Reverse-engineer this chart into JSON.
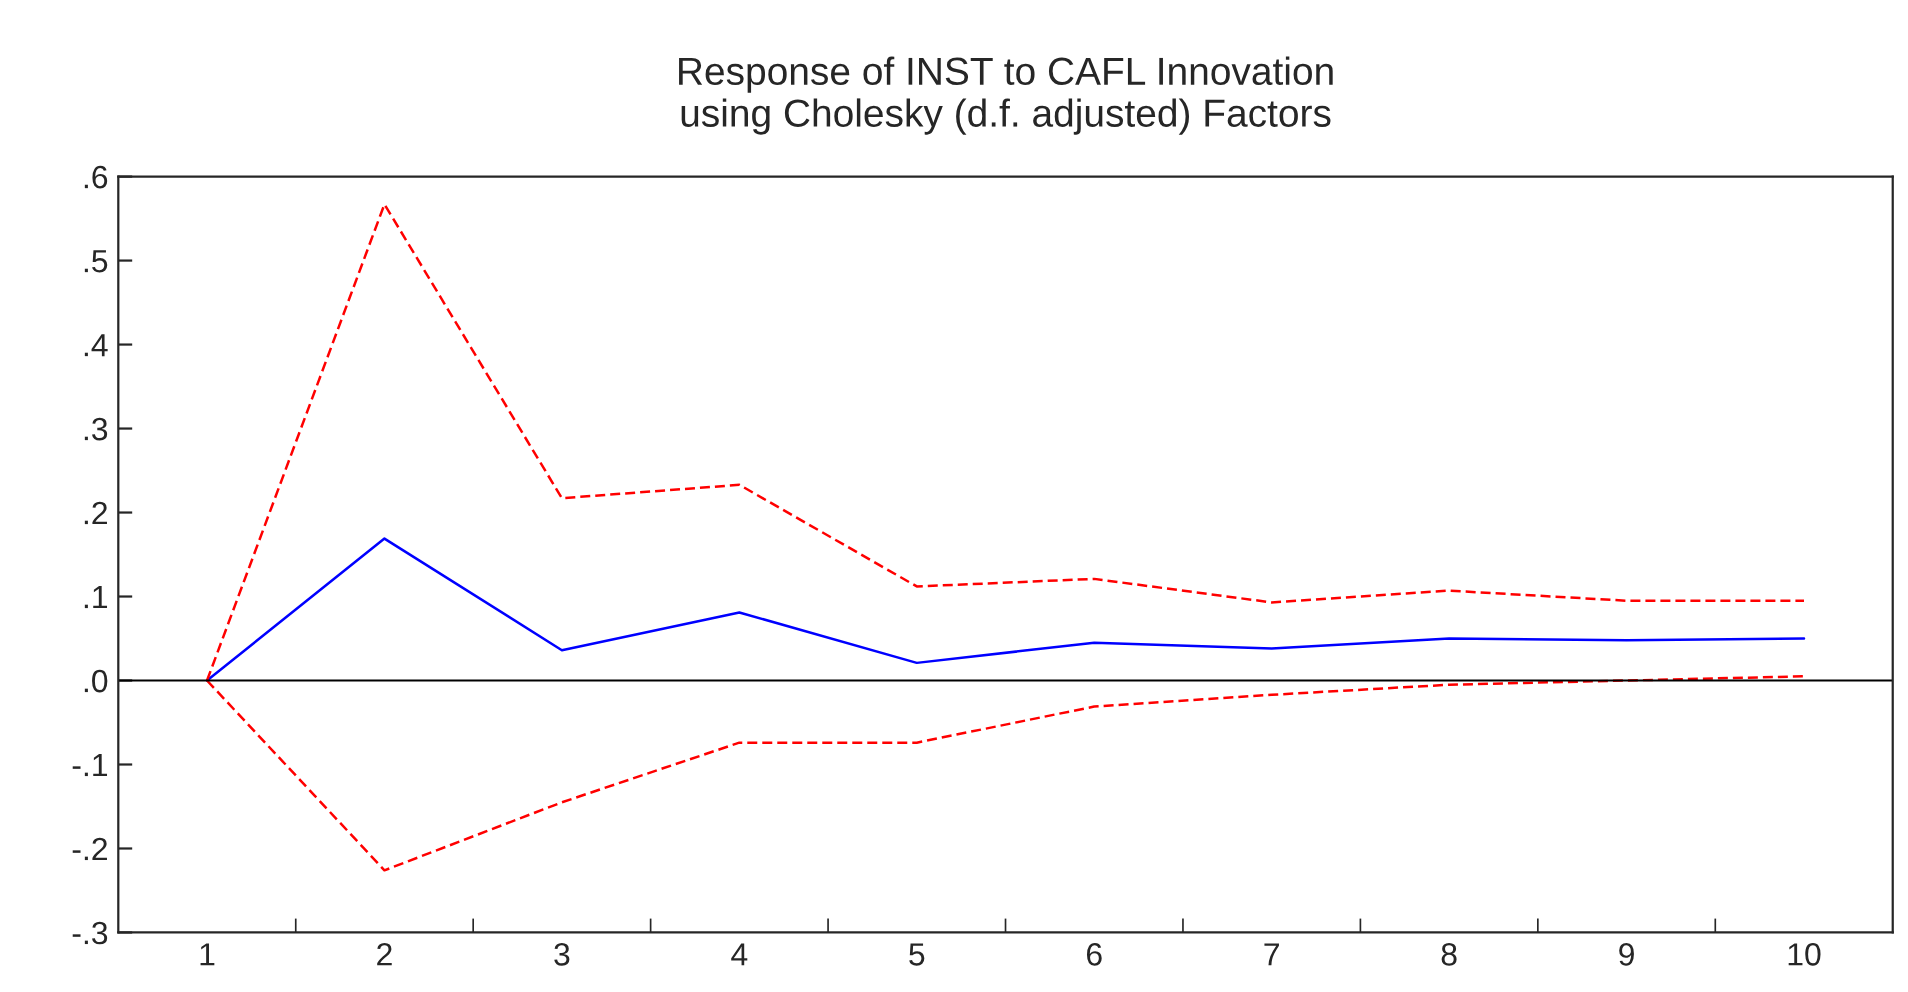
{
  "chart_data": {
    "type": "line",
    "title": "Response of INST to CAFL Innovation\nusing Cholesky (d.f. adjusted) Factors",
    "categories": [
      "1",
      "2",
      "3",
      "4",
      "5",
      "6",
      "7",
      "8",
      "9",
      "10"
    ],
    "series": [
      {
        "color": "#0000ff",
        "line_style": "solid",
        "values": [
          0.0,
          0.169,
          0.036,
          0.081,
          0.021,
          0.045,
          0.038,
          0.05,
          0.048,
          0.05
        ]
      },
      {
        "color": "#ff0000",
        "line_style": "dashed",
        "values": [
          0.0,
          0.567,
          0.217,
          0.233,
          0.112,
          0.121,
          0.093,
          0.107,
          0.095,
          0.095
        ]
      },
      {
        "color": "#ff0000",
        "line_style": "dashed",
        "values": [
          0.0,
          -0.226,
          -0.145,
          -0.074,
          -0.074,
          -0.031,
          -0.017,
          -0.005,
          0.0,
          0.005
        ]
      }
    ],
    "ylim": [
      -0.3,
      0.6
    ],
    "yticks": [
      {
        "value": -0.3,
        "label": "-.3"
      },
      {
        "value": -0.2,
        "label": "-.2"
      },
      {
        "value": -0.1,
        "label": "-.1"
      },
      {
        "value": 0.0,
        "label": ".0"
      },
      {
        "value": 0.1,
        "label": ".1"
      },
      {
        "value": 0.2,
        "label": ".2"
      },
      {
        "value": 0.3,
        "label": ".3"
      },
      {
        "value": 0.4,
        "label": ".4"
      },
      {
        "value": 0.5,
        "label": ".5"
      },
      {
        "value": 0.6,
        "label": ".6"
      }
    ],
    "ref_lines": [
      {
        "axis": "y",
        "value": 0.0,
        "color": "#000000",
        "line_style": "solid"
      }
    ],
    "grid": false,
    "legend": false
  }
}
